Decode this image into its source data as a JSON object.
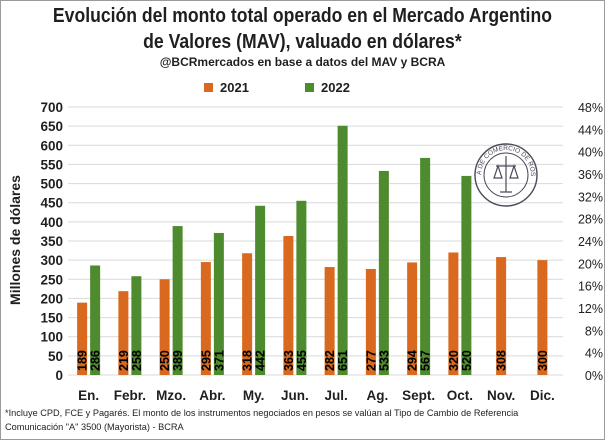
{
  "chart_data": {
    "type": "bar",
    "title_line1": "Evolución del monto total operado en el Mercado Argentino",
    "title_line2": "de Valores (MAV), valuado en dólares",
    "title_asterisk": "*",
    "subtitle": "@BCRmercados en base a datos del MAV y BCRA",
    "ylabel": "Millones de dólares",
    "xlabel": "",
    "ylim": [
      0,
      700
    ],
    "yticks": [
      0,
      50,
      100,
      150,
      200,
      250,
      300,
      350,
      400,
      450,
      500,
      550,
      600,
      650,
      700
    ],
    "y2lim": [
      0,
      48
    ],
    "y2ticks": [
      "0%",
      "4%",
      "8%",
      "12%",
      "16%",
      "20%",
      "24%",
      "28%",
      "32%",
      "36%",
      "40%",
      "44%",
      "48%"
    ],
    "categories": [
      "En.",
      "Febr.",
      "Mzo.",
      "Abr.",
      "My.",
      "Jun.",
      "Jul.",
      "Ag.",
      "Sept.",
      "Oct.",
      "Nov.",
      "Dic."
    ],
    "series": [
      {
        "name": "2021",
        "color": "#D9691E",
        "values": [
          189,
          219,
          250,
          295,
          318,
          363,
          282,
          277,
          294,
          320,
          308,
          300
        ]
      },
      {
        "name": "2022",
        "color": "#4E8B2F",
        "values": [
          286,
          258,
          389,
          371,
          442,
          455,
          651,
          533,
          567,
          520,
          null,
          null
        ]
      }
    ],
    "legend_position": "top",
    "grid": true,
    "label_color": "#000000",
    "grid_color": "#D9D9D9",
    "axis_text_color": "#1f1f1f"
  },
  "logo": {
    "text": "BOLSA DE COMERCIO DE ROSARIO"
  },
  "footnote": {
    "line1": "*Incluye CPD, FCE y Pagarés. El monto de los instrumentos  negociados en pesos se valúan al Tipo de Cambio de Referencia",
    "line2": "Comunicación \"A\" 3500 (Mayorista) - BCRA"
  }
}
